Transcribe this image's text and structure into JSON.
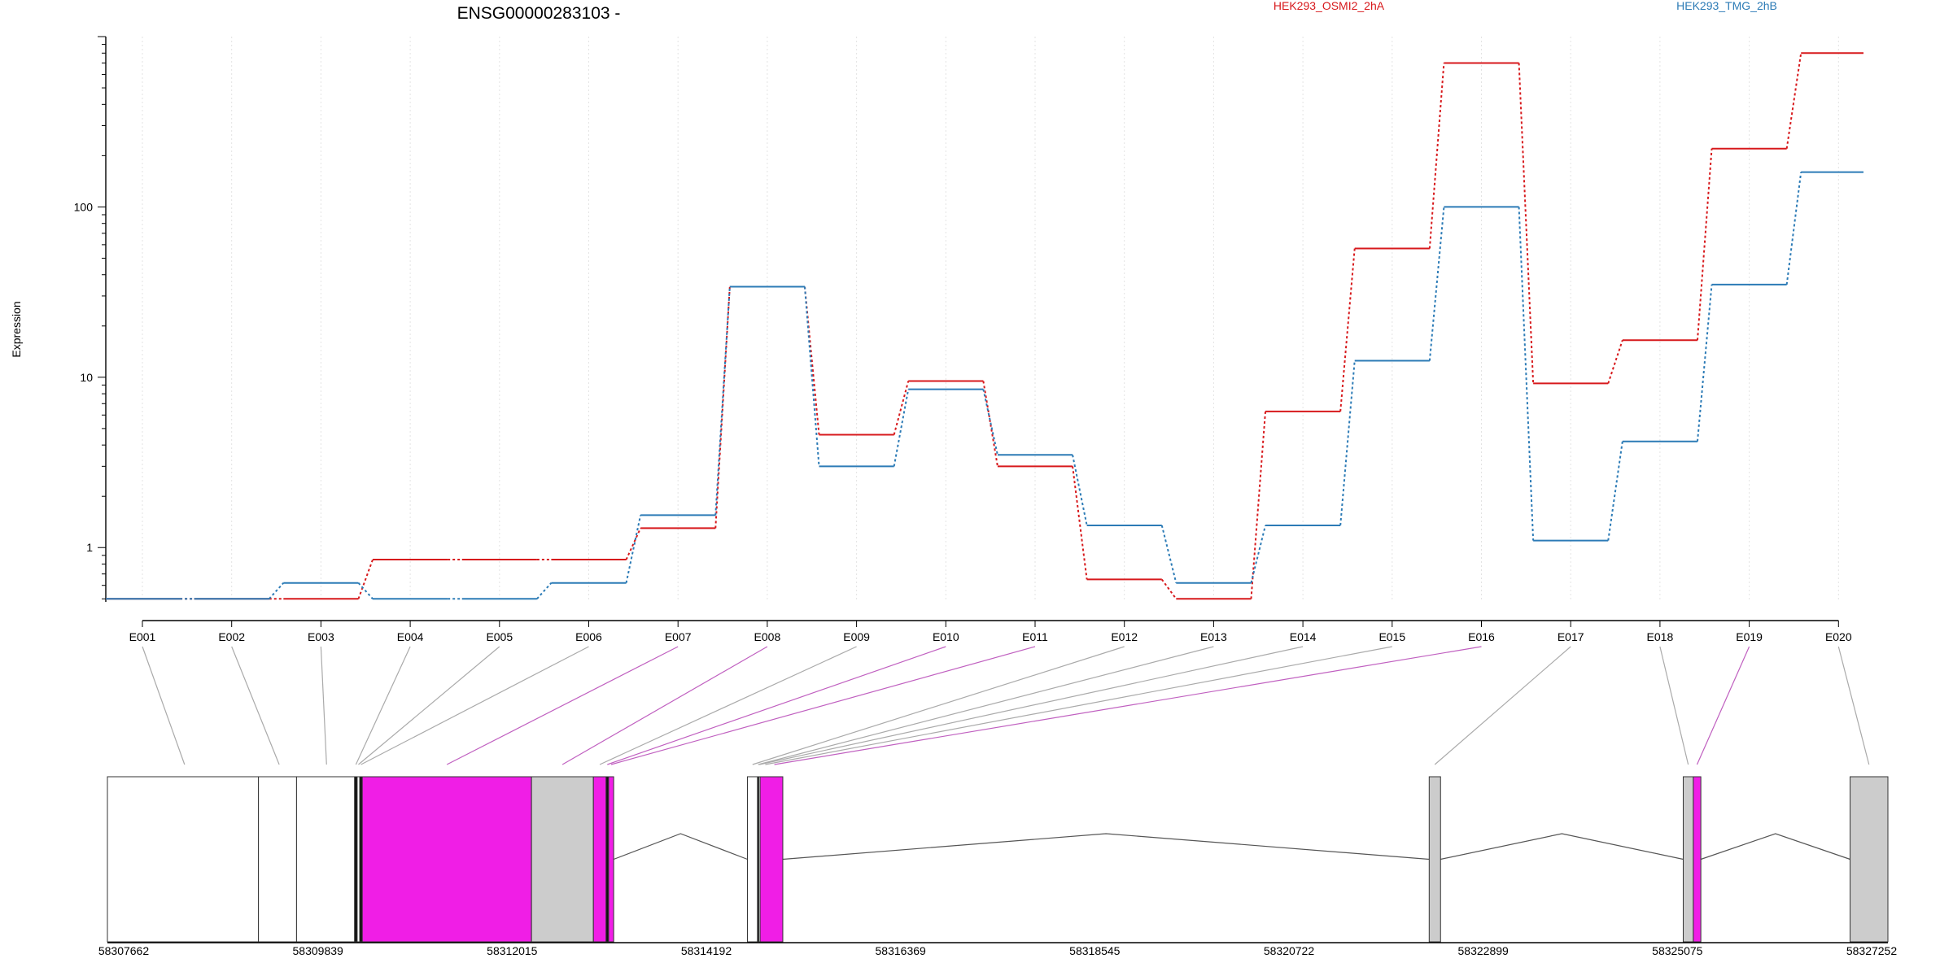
{
  "chart_data": {
    "type": "line",
    "title": "ENSG00000283103 -",
    "ylabel": "Expression",
    "xlabel": "",
    "y_scale": "log",
    "ylim": [
      0.48,
      1000
    ],
    "y_ticks": [
      1,
      10,
      100
    ],
    "grid": "vertical dotted lines at each exon",
    "legend_position": "top",
    "categories": [
      "E001",
      "E002",
      "E003",
      "E004",
      "E005",
      "E006",
      "E007",
      "E008",
      "E009",
      "E010",
      "E011",
      "E012",
      "E013",
      "E014",
      "E015",
      "E016",
      "E017",
      "E018",
      "E019",
      "E020"
    ],
    "series": [
      {
        "name": "HEK293_OSMI2_2hA",
        "color": "#d7191c",
        "values": [
          0.5,
          0.5,
          0.5,
          0.85,
          0.85,
          0.85,
          1.3,
          34,
          4.6,
          9.5,
          3.0,
          0.65,
          0.5,
          6.3,
          57,
          700,
          9.2,
          16.5,
          220,
          800
        ]
      },
      {
        "name": "HEK293_TMG_2hB",
        "color": "#2c7bb6",
        "values": [
          0.5,
          0.5,
          0.62,
          0.5,
          0.5,
          0.62,
          1.55,
          34,
          3.0,
          8.5,
          3.5,
          1.35,
          0.62,
          1.35,
          12.5,
          100,
          1.1,
          4.2,
          35,
          160
        ]
      }
    ],
    "gene_model": {
      "coordinate_labels": [
        "58307662",
        "58309839",
        "58312015",
        "58314192",
        "58316369",
        "58318545",
        "58320722",
        "58322899",
        "58325075",
        "58327252"
      ],
      "genomic_range": [
        58307662,
        58327252
      ],
      "exon_colors": {
        "significant": "#f01ee6",
        "not_significant": "#cccccc",
        "unexpressed": "#ffffff"
      },
      "exon_blocks": [
        {
          "start": 58307662,
          "end": 58309324,
          "fill": "#ffffff"
        },
        {
          "start": 58309324,
          "end": 58309743,
          "fill": "#ffffff"
        },
        {
          "start": 58309743,
          "end": 58310382,
          "fill": "#ffffff"
        },
        {
          "start": 58310382,
          "end": 58310410,
          "fill": "#111111"
        },
        {
          "start": 58310410,
          "end": 58310438,
          "fill": "#ffffff"
        },
        {
          "start": 58310438,
          "end": 58310466,
          "fill": "#111111"
        },
        {
          "start": 58310466,
          "end": 58312328,
          "fill": "#f01ee6"
        },
        {
          "start": 58312328,
          "end": 58313009,
          "fill": "#cccccc"
        },
        {
          "start": 58313009,
          "end": 58313149,
          "fill": "#f01ee6"
        },
        {
          "start": 58313149,
          "end": 58313176,
          "fill": "#111111"
        },
        {
          "start": 58313176,
          "end": 58313232,
          "fill": "#f01ee6"
        },
        {
          "start": 58314704,
          "end": 58314815,
          "fill": "#ffffff"
        },
        {
          "start": 58314815,
          "end": 58314829,
          "fill": "#111111"
        },
        {
          "start": 58314829,
          "end": 58314843,
          "fill": "#ffffff"
        },
        {
          "start": 58314843,
          "end": 58315093,
          "fill": "#f01ee6"
        },
        {
          "start": 58322205,
          "end": 58322330,
          "fill": "#cccccc"
        },
        {
          "start": 58325000,
          "end": 58325111,
          "fill": "#cccccc"
        },
        {
          "start": 58325111,
          "end": 58325194,
          "fill": "#f01ee6"
        },
        {
          "start": 58326836,
          "end": 58327252,
          "fill": "#cccccc"
        }
      ],
      "introns": [
        {
          "from": 58313232,
          "to": 58314704
        },
        {
          "from": 58315093,
          "to": 58322205
        },
        {
          "from": 58322330,
          "to": 58325000
        },
        {
          "from": 58325194,
          "to": 58326836
        }
      ],
      "exon_links": [
        {
          "exon": "E001",
          "pos": 58308511,
          "color": "#aaaaaa"
        },
        {
          "exon": "E002",
          "pos": 58309552,
          "color": "#aaaaaa"
        },
        {
          "exon": "E003",
          "pos": 58310073,
          "color": "#aaaaaa"
        },
        {
          "exon": "E004",
          "pos": 58310396,
          "color": "#aaaaaa"
        },
        {
          "exon": "E005",
          "pos": 58310424,
          "color": "#aaaaaa"
        },
        {
          "exon": "E006",
          "pos": 58310452,
          "color": "#aaaaaa"
        },
        {
          "exon": "E007",
          "pos": 58311397,
          "color": "#c060c0"
        },
        {
          "exon": "E008",
          "pos": 58312668,
          "color": "#c060c0"
        },
        {
          "exon": "E009",
          "pos": 58313079,
          "color": "#aaaaaa"
        },
        {
          "exon": "E010",
          "pos": 58313162,
          "color": "#c060c0"
        },
        {
          "exon": "E011",
          "pos": 58313204,
          "color": "#c060c0"
        },
        {
          "exon": "E012",
          "pos": 58314760,
          "color": "#aaaaaa"
        },
        {
          "exon": "E013",
          "pos": 58314822,
          "color": "#aaaaaa"
        },
        {
          "exon": "E014",
          "pos": 58314836,
          "color": "#aaaaaa"
        },
        {
          "exon": "E015",
          "pos": 58314900,
          "color": "#aaaaaa"
        },
        {
          "exon": "E016",
          "pos": 58315000,
          "color": "#c060c0"
        },
        {
          "exon": "E017",
          "pos": 58322267,
          "color": "#aaaaaa"
        },
        {
          "exon": "E018",
          "pos": 58325055,
          "color": "#aaaaaa"
        },
        {
          "exon": "E019",
          "pos": 58325152,
          "color": "#c060c0"
        },
        {
          "exon": "E020",
          "pos": 58327044,
          "color": "#aaaaaa"
        }
      ]
    }
  }
}
